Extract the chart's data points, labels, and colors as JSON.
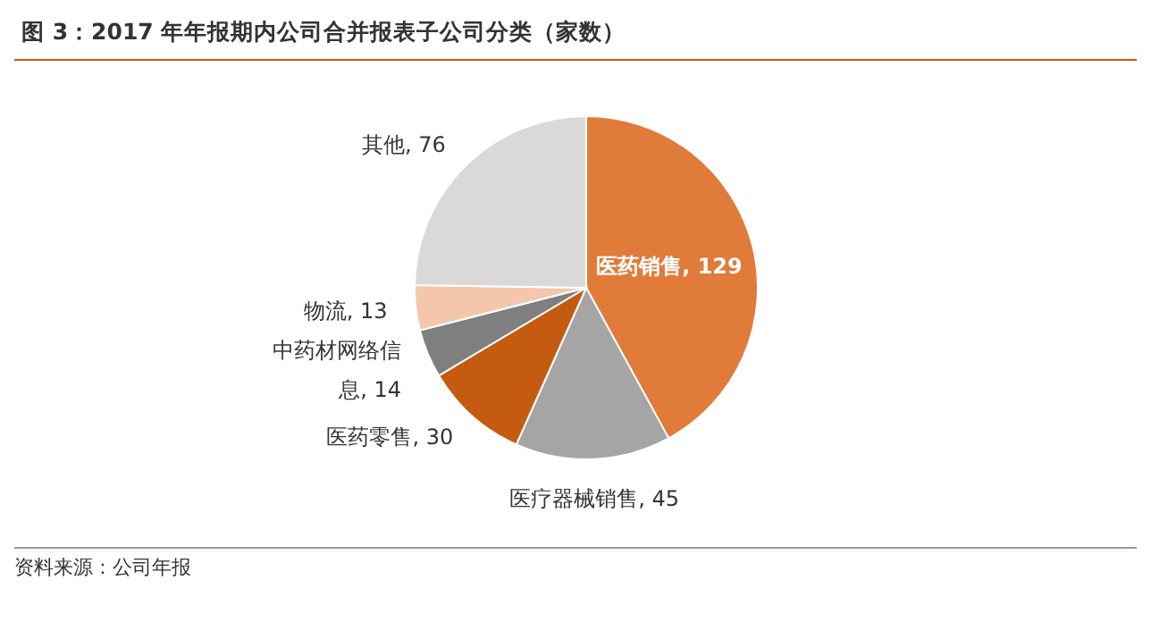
{
  "chart_data": {
    "type": "pie",
    "title": "图 3：2017 年年报期内公司合并报表子公司分类（家数）",
    "categories": [
      "医药销售",
      "医疗器械销售",
      "医药零售",
      "中药材网络信息",
      "物流",
      "其他"
    ],
    "values": [
      129,
      45,
      30,
      14,
      13,
      76
    ],
    "colors": [
      "#e07b39",
      "#a5a5a5",
      "#c55a11",
      "#7f7f7f",
      "#f4c7ad",
      "#d9d9d9"
    ],
    "value_labels": [
      ", 129",
      ", 45",
      ", 30",
      ", 14",
      ", 13",
      ", 76"
    ],
    "annotations": [
      "资料来源：公司年报"
    ]
  }
}
